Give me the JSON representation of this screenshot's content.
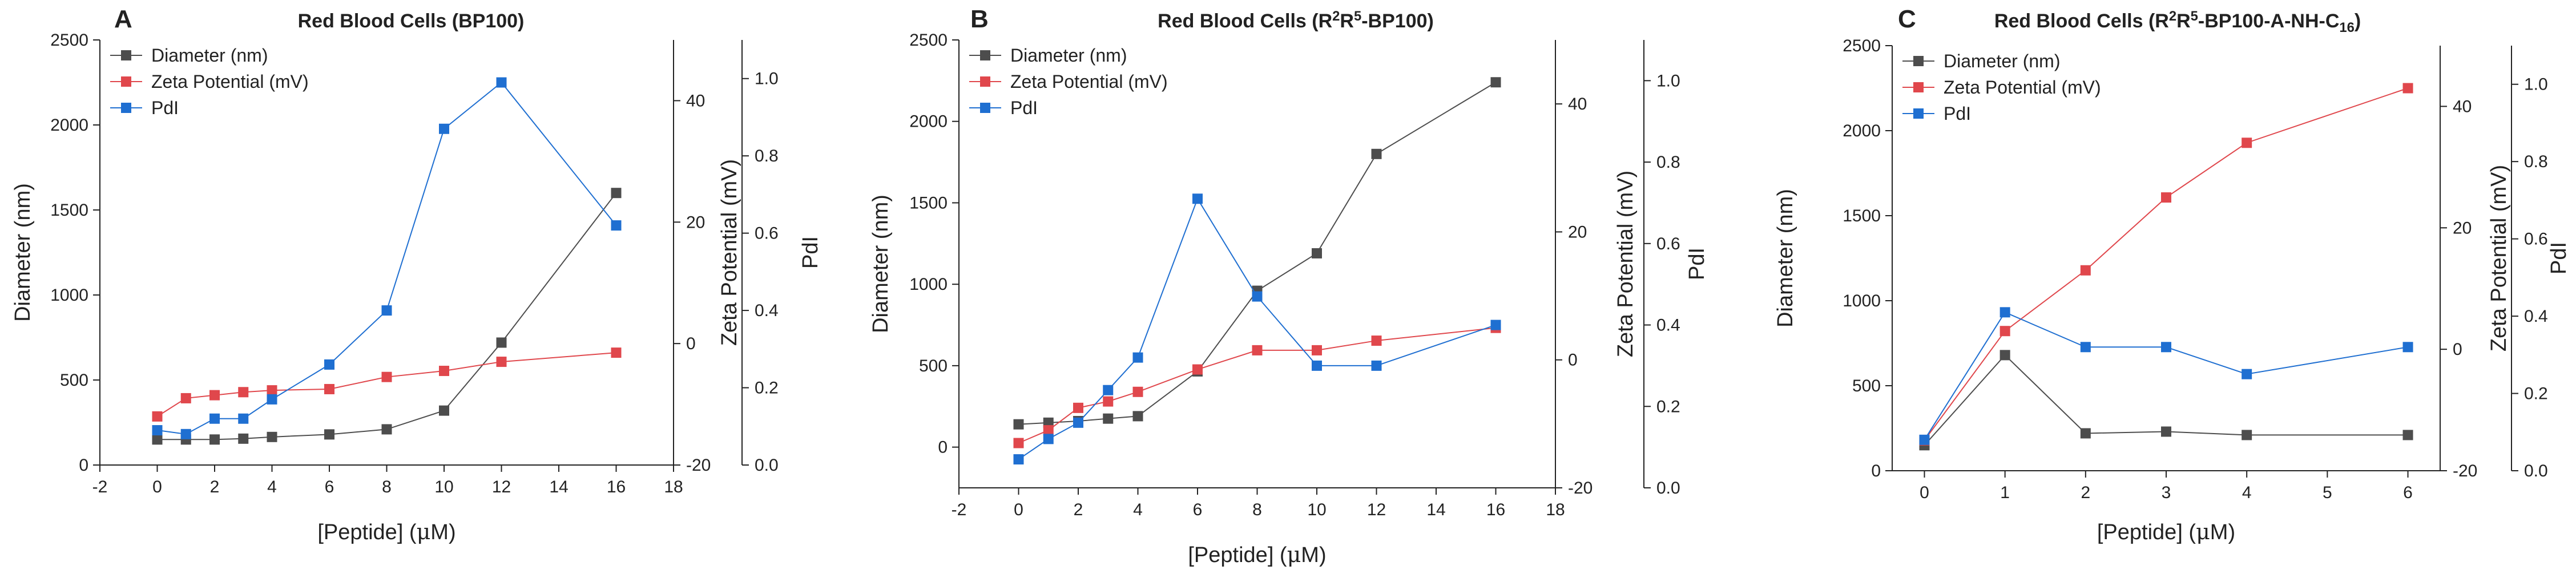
{
  "chart_data": [
    {
      "type": "line",
      "panel_letter": "A",
      "title_parts": [
        {
          "t": "Red Blood Cells (BP100)"
        }
      ],
      "xlabel_parts": [
        {
          "t": "[Peptide] ("
        },
        {
          "t": "μ",
          "greek": true
        },
        {
          "t": "M)"
        }
      ],
      "y1label": "Diameter (nm)",
      "y2label": "Zeta Potential (mV)",
      "y3label": "PdI",
      "xlim": [
        -2,
        18
      ],
      "xticks": [
        -2,
        0,
        2,
        4,
        6,
        8,
        10,
        12,
        14,
        16,
        18
      ],
      "y1lim": [
        0,
        2500
      ],
      "y1ticks": [
        0,
        500,
        1000,
        1500,
        2000,
        2500
      ],
      "y2lim": [
        -20,
        50
      ],
      "y2ticks": [
        -20,
        0,
        20,
        40
      ],
      "y3lim": [
        0,
        1.1
      ],
      "y3ticks": [
        "0.0",
        "0.2",
        "0.4",
        "0.6",
        "0.8",
        "1.0"
      ],
      "legend_position": "top-left",
      "series": [
        {
          "name": "Diameter (nm)",
          "axis": "y1",
          "color": "#4d4d4d",
          "x": [
            0,
            1,
            2,
            3,
            4,
            6,
            8,
            10,
            12,
            16
          ],
          "y": [
            150,
            150,
            150,
            155,
            165,
            180,
            210,
            320,
            720,
            1600
          ]
        },
        {
          "name": "Zeta Potential (mV)",
          "axis": "y2",
          "color": "#e0474c",
          "x": [
            0,
            1,
            2,
            3,
            4,
            6,
            8,
            10,
            12,
            16
          ],
          "y": [
            -12,
            -9,
            -8.5,
            -8,
            -7.7,
            -7.5,
            -5.5,
            -4.5,
            -3,
            -1.5
          ]
        },
        {
          "name": "PdI",
          "axis": "y3",
          "color": "#1f6fd1",
          "x": [
            0,
            1,
            2,
            3,
            4,
            6,
            8,
            10,
            12,
            16
          ],
          "y": [
            0.09,
            0.08,
            0.12,
            0.12,
            0.17,
            0.26,
            0.4,
            0.87,
            0.99,
            0.62
          ]
        }
      ]
    },
    {
      "type": "line",
      "panel_letter": "B",
      "title_parts": [
        {
          "t": "Red Blood Cells (R"
        },
        {
          "t": "2",
          "sup": true
        },
        {
          "t": "R"
        },
        {
          "t": "5",
          "sup": true
        },
        {
          "t": "-BP100)"
        }
      ],
      "xlabel_parts": [
        {
          "t": "[Peptide] ("
        },
        {
          "t": "μ",
          "greek": true
        },
        {
          "t": "M)"
        }
      ],
      "y1label": "Diameter (nm)",
      "y2label": "Zeta Potential (mV)",
      "y3label": "PdI",
      "xlim": [
        -2,
        18
      ],
      "xticks": [
        -2,
        0,
        2,
        4,
        6,
        8,
        10,
        12,
        14,
        16,
        18
      ],
      "y1lim": [
        -250,
        2500
      ],
      "y1ticks": [
        0,
        500,
        1000,
        1500,
        2000,
        2500
      ],
      "y2lim": [
        -20,
        50
      ],
      "y2ticks": [
        -20,
        0,
        20,
        40
      ],
      "y3lim": [
        0,
        1.1
      ],
      "y3ticks": [
        "0.0",
        "0.2",
        "0.4",
        "0.6",
        "0.8",
        "1.0"
      ],
      "legend_position": "top-left",
      "series": [
        {
          "name": "Diameter (nm)",
          "axis": "y1",
          "color": "#4d4d4d",
          "x": [
            0,
            1,
            2,
            3,
            4,
            6,
            8,
            10,
            12,
            16
          ],
          "y": [
            140,
            150,
            160,
            175,
            190,
            465,
            960,
            1190,
            1800,
            2240
          ]
        },
        {
          "name": "Zeta Potential (mV)",
          "axis": "y2",
          "color": "#e0474c",
          "x": [
            0,
            1,
            2,
            3,
            4,
            6,
            8,
            10,
            12,
            16
          ],
          "y": [
            -13,
            -11,
            -7.5,
            -6.5,
            -5,
            -1.5,
            1.5,
            1.5,
            3,
            5
          ]
        },
        {
          "name": "PdI",
          "axis": "y3",
          "color": "#1f6fd1",
          "x": [
            0,
            1,
            2,
            3,
            4,
            6,
            8,
            10,
            12,
            16
          ],
          "y": [
            0.07,
            0.12,
            0.16,
            0.24,
            0.32,
            0.71,
            0.47,
            0.3,
            0.3,
            0.4
          ]
        }
      ]
    },
    {
      "type": "line",
      "panel_letter": "C",
      "title_parts": [
        {
          "t": "Red Blood Cells (R"
        },
        {
          "t": "2",
          "sup": true
        },
        {
          "t": "R"
        },
        {
          "t": "5",
          "sup": true
        },
        {
          "t": "-BP100-A-NH-C"
        },
        {
          "t": "16",
          "sub": true
        },
        {
          "t": ")"
        }
      ],
      "xlabel_parts": [
        {
          "t": "[Peptide] ("
        },
        {
          "t": "μ",
          "greek": true
        },
        {
          "t": "M)"
        }
      ],
      "y1label": "Diameter (nm)",
      "y2label": "Zeta Potential (mV)",
      "y3label": "PdI",
      "xlim": [
        -0.4,
        6.4
      ],
      "xticks": [
        0,
        1,
        2,
        3,
        4,
        5,
        6
      ],
      "y1lim": [
        0,
        2500
      ],
      "y1ticks": [
        0,
        500,
        1000,
        1500,
        2000,
        2500
      ],
      "y2lim": [
        -20,
        50
      ],
      "y2ticks": [
        -20,
        0,
        20,
        40
      ],
      "y3lim": [
        0,
        1.1
      ],
      "y3ticks": [
        "0.0",
        "0.2",
        "0.4",
        "0.6",
        "0.8",
        "1.0"
      ],
      "legend_position": "top-left",
      "series": [
        {
          "name": "Diameter (nm)",
          "axis": "y1",
          "color": "#4d4d4d",
          "x": [
            0,
            1,
            2,
            3,
            4,
            6
          ],
          "y": [
            150,
            680,
            220,
            230,
            210,
            210
          ]
        },
        {
          "name": "Zeta Potential (mV)",
          "axis": "y2",
          "color": "#e0474c",
          "x": [
            0,
            1,
            2,
            3,
            4,
            6
          ],
          "y": [
            -15,
            3,
            13,
            25,
            34,
            43
          ]
        },
        {
          "name": "PdI",
          "axis": "y3",
          "color": "#1f6fd1",
          "x": [
            0,
            1,
            2,
            3,
            4,
            6
          ],
          "y": [
            0.08,
            0.41,
            0.32,
            0.32,
            0.25,
            0.32
          ]
        }
      ]
    }
  ]
}
